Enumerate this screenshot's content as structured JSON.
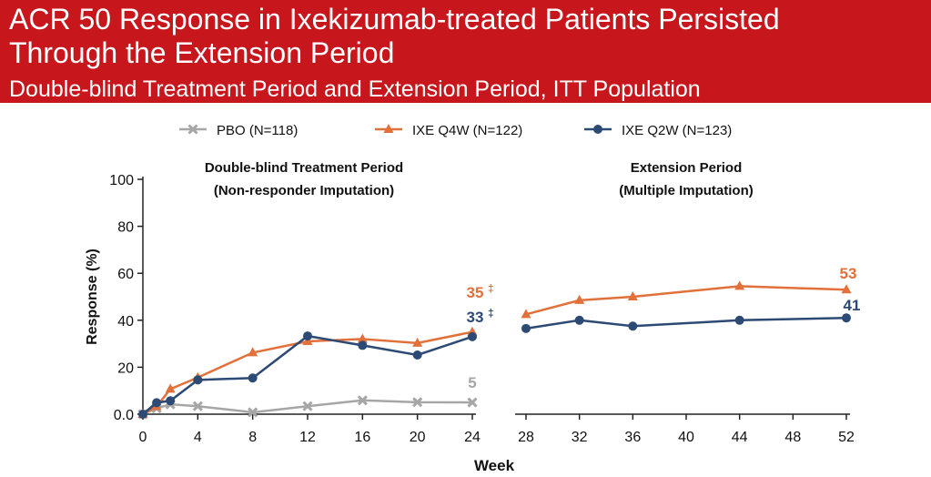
{
  "header": {
    "title_line1": "ACR 50 Response in Ixekizumab-treated Patients Persisted",
    "title_line2": "Through the Extension Period",
    "subtitle": "Double-blind Treatment Period and Extension Period, ITT Population"
  },
  "colors": {
    "header_bg": "#c8161d",
    "pbo": "#a6a6a6",
    "ixe_q4w": "#e2703a",
    "ixe_q2w": "#2c4a73"
  },
  "chart_data": {
    "type": "line",
    "xlabel": "Week",
    "ylabel": "Response (%)",
    "ylim": [
      0,
      100
    ],
    "y_ticks": [
      "0.0",
      "20",
      "40",
      "60",
      "80",
      "100"
    ],
    "panels": [
      {
        "title_line1": "Double-blind Treatment Period",
        "title_line2": "(Non-responder Imputation)",
        "xlim": [
          0,
          24
        ],
        "x_ticks": [
          0,
          4,
          8,
          12,
          16,
          20,
          24
        ],
        "series": [
          {
            "name": "PBO (N=118)",
            "x": [
              0,
              1,
              2,
              4,
              8,
              12,
              16,
              20,
              24
            ],
            "y": [
              0,
              2.5,
              4.2,
              3.4,
              0.8,
              3.4,
              5.9,
              5.1,
              5
            ]
          },
          {
            "name": "IXE Q4W (N=122)",
            "x": [
              0,
              1,
              2,
              4,
              8,
              12,
              16,
              20,
              24
            ],
            "y": [
              0,
              3.3,
              10.7,
              15.6,
              26.2,
              31,
              32,
              30.3,
              35
            ]
          },
          {
            "name": "IXE Q2W (N=123)",
            "x": [
              0,
              1,
              2,
              4,
              8,
              12,
              16,
              20,
              24
            ],
            "y": [
              0,
              4.9,
              5.7,
              14.6,
              15.4,
              33.3,
              29.3,
              25.2,
              33
            ]
          }
        ],
        "end_labels": [
          {
            "series": "PBO (N=118)",
            "text": "5",
            "mark": ""
          },
          {
            "series": "IXE Q4W (N=122)",
            "text": "35",
            "mark": "‡"
          },
          {
            "series": "IXE Q2W (N=123)",
            "text": "33",
            "mark": "‡"
          }
        ]
      },
      {
        "title_line1": "Extension Period",
        "title_line2": "(Multiple Imputation)",
        "xlim": [
          28,
          52
        ],
        "x_ticks": [
          28,
          32,
          36,
          40,
          44,
          48,
          52
        ],
        "series": [
          {
            "name": "IXE Q4W (N=122)",
            "x": [
              28,
              32,
              36,
              44,
              52
            ],
            "y": [
              42.5,
              48.5,
              50,
              54.5,
              53
            ]
          },
          {
            "name": "IXE Q2W (N=123)",
            "x": [
              28,
              32,
              36,
              44,
              52
            ],
            "y": [
              36.5,
              40,
              37.5,
              40,
              41
            ]
          }
        ],
        "end_labels": [
          {
            "series": "IXE Q4W (N=122)",
            "text": "53",
            "mark": ""
          },
          {
            "series": "IXE Q2W (N=123)",
            "text": "41",
            "mark": ""
          }
        ]
      }
    ],
    "legend": {
      "placement": "top",
      "entries": [
        {
          "name": "PBO (N=118)",
          "marker": "x"
        },
        {
          "name": "IXE Q4W (N=122)",
          "marker": "triangle"
        },
        {
          "name": "IXE Q2W (N=123)",
          "marker": "circle"
        }
      ]
    }
  }
}
